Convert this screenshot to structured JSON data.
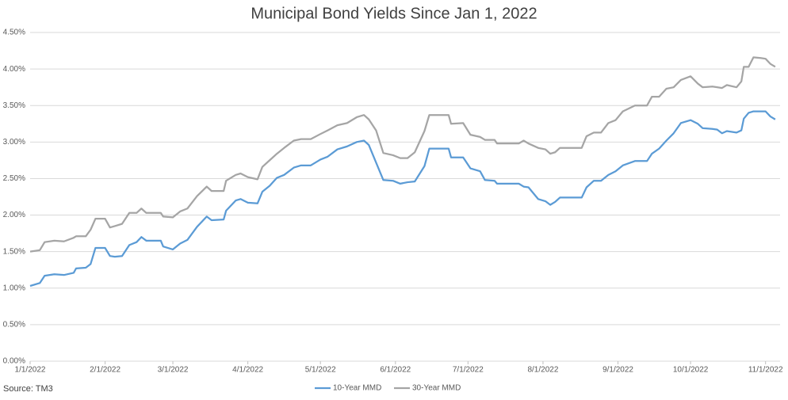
{
  "chart_data": {
    "type": "line",
    "title": "Municipal Bond Yields Since Jan 1, 2022",
    "source": "Source: TM3",
    "x": [
      "1/1/2022",
      "1/5/2022",
      "1/7/2022",
      "1/11/2022",
      "1/15/2022",
      "1/19/2022",
      "1/20/2022",
      "1/24/2022",
      "1/26/2022",
      "1/28/2022",
      "2/1/2022",
      "2/3/2022",
      "2/5/2022",
      "2/8/2022",
      "2/11/2022",
      "2/14/2022",
      "2/16/2022",
      "2/18/2022",
      "2/24/2022",
      "2/25/2022",
      "3/1/2022",
      "3/4/2022",
      "3/7/2022",
      "3/11/2022",
      "3/15/2022",
      "3/17/2022",
      "3/22/2022",
      "3/23/2022",
      "3/27/2022",
      "3/29/2022",
      "4/1/2022",
      "4/5/2022",
      "4/7/2022",
      "4/10/2022",
      "4/13/2022",
      "4/16/2022",
      "4/20/2022",
      "4/23/2022",
      "4/27/2022",
      "5/1/2022",
      "5/4/2022",
      "5/8/2022",
      "5/12/2022",
      "5/16/2022",
      "5/19/2022",
      "5/21/2022",
      "5/24/2022",
      "5/27/2022",
      "5/31/2022",
      "6/3/2022",
      "6/6/2022",
      "6/9/2022",
      "6/13/2022",
      "6/15/2022",
      "6/23/2022",
      "6/24/2022",
      "6/29/2022",
      "7/2/2022",
      "7/6/2022",
      "7/8/2022",
      "7/12/2022",
      "7/13/2022",
      "7/22/2022",
      "7/24/2022",
      "7/26/2022",
      "7/30/2022",
      "8/2/2022",
      "8/4/2022",
      "8/6/2022",
      "8/8/2022",
      "8/17/2022",
      "8/19/2022",
      "8/22/2022",
      "8/25/2022",
      "8/28/2022",
      "8/31/2022",
      "9/3/2022",
      "9/8/2022",
      "9/13/2022",
      "9/15/2022",
      "9/18/2022",
      "9/21/2022",
      "9/24/2022",
      "9/27/2022",
      "10/1/2022",
      "10/4/2022",
      "10/6/2022",
      "10/10/2022",
      "10/12/2022",
      "10/14/2022",
      "10/16/2022",
      "10/20/2022",
      "10/22/2022",
      "10/23/2022",
      "10/25/2022",
      "10/27/2022",
      "10/30/2022",
      "11/1/2022",
      "11/3/2022",
      "11/5/2022"
    ],
    "series": [
      {
        "name": "10-Year MMD",
        "color": "#5b9bd5",
        "values": [
          1.03,
          1.07,
          1.17,
          1.19,
          1.18,
          1.21,
          1.27,
          1.28,
          1.33,
          1.55,
          1.55,
          1.44,
          1.43,
          1.44,
          1.59,
          1.63,
          1.7,
          1.65,
          1.65,
          1.57,
          1.53,
          1.61,
          1.66,
          1.84,
          1.98,
          1.93,
          1.94,
          2.06,
          2.2,
          2.22,
          2.17,
          2.16,
          2.32,
          2.4,
          2.51,
          2.55,
          2.65,
          2.68,
          2.68,
          2.76,
          2.8,
          2.9,
          2.94,
          3.0,
          3.02,
          2.96,
          2.72,
          2.48,
          2.47,
          2.43,
          2.45,
          2.46,
          2.67,
          2.91,
          2.91,
          2.79,
          2.79,
          2.64,
          2.6,
          2.48,
          2.47,
          2.43,
          2.43,
          2.39,
          2.38,
          2.22,
          2.19,
          2.14,
          2.18,
          2.24,
          2.24,
          2.38,
          2.47,
          2.47,
          2.55,
          2.6,
          2.68,
          2.74,
          2.74,
          2.84,
          2.91,
          3.02,
          3.12,
          3.26,
          3.3,
          3.25,
          3.19,
          3.18,
          3.17,
          3.12,
          3.15,
          3.13,
          3.16,
          3.32,
          3.4,
          3.42,
          3.42,
          3.42,
          3.35,
          3.31
        ]
      },
      {
        "name": "30-Year MMD",
        "color": "#a5a5a5",
        "values": [
          1.5,
          1.52,
          1.63,
          1.65,
          1.64,
          1.69,
          1.71,
          1.71,
          1.8,
          1.95,
          1.95,
          1.83,
          1.85,
          1.88,
          2.03,
          2.03,
          2.09,
          2.03,
          2.03,
          1.98,
          1.97,
          2.05,
          2.09,
          2.26,
          2.39,
          2.33,
          2.33,
          2.47,
          2.55,
          2.57,
          2.52,
          2.49,
          2.66,
          2.75,
          2.84,
          2.92,
          3.02,
          3.04,
          3.04,
          3.11,
          3.16,
          3.23,
          3.26,
          3.34,
          3.37,
          3.31,
          3.16,
          2.85,
          2.82,
          2.78,
          2.78,
          2.86,
          3.15,
          3.37,
          3.37,
          3.25,
          3.26,
          3.1,
          3.07,
          3.03,
          3.03,
          2.98,
          2.98,
          3.02,
          2.98,
          2.92,
          2.9,
          2.84,
          2.86,
          2.92,
          2.92,
          3.08,
          3.13,
          3.13,
          3.26,
          3.3,
          3.42,
          3.5,
          3.5,
          3.62,
          3.62,
          3.73,
          3.75,
          3.85,
          3.9,
          3.8,
          3.75,
          3.76,
          3.75,
          3.74,
          3.78,
          3.75,
          3.83,
          4.03,
          4.03,
          4.16,
          4.15,
          4.14,
          4.07,
          4.03
        ]
      }
    ],
    "xlim": [
      "1/1/2022",
      "11/7/2022"
    ],
    "xticks": [
      "1/1/2022",
      "2/1/2022",
      "3/1/2022",
      "4/1/2022",
      "5/1/2022",
      "6/1/2022",
      "7/1/2022",
      "8/1/2022",
      "9/1/2022",
      "10/1/2022",
      "11/1/2022"
    ],
    "ylim": [
      0,
      4.5
    ],
    "yticks": [
      {
        "value": 0,
        "label": "0.00%"
      },
      {
        "value": 0.5,
        "label": "0.50%"
      },
      {
        "value": 1,
        "label": "1.00%"
      },
      {
        "value": 1.5,
        "label": "1.50%"
      },
      {
        "value": 2,
        "label": "2.00%"
      },
      {
        "value": 2.5,
        "label": "2.50%"
      },
      {
        "value": 3,
        "label": "3.00%"
      },
      {
        "value": 3.5,
        "label": "3.50%"
      },
      {
        "value": 4,
        "label": "4.00%"
      },
      {
        "value": 4.5,
        "label": "4.50%"
      }
    ],
    "grid": true,
    "legend": "bottom"
  }
}
